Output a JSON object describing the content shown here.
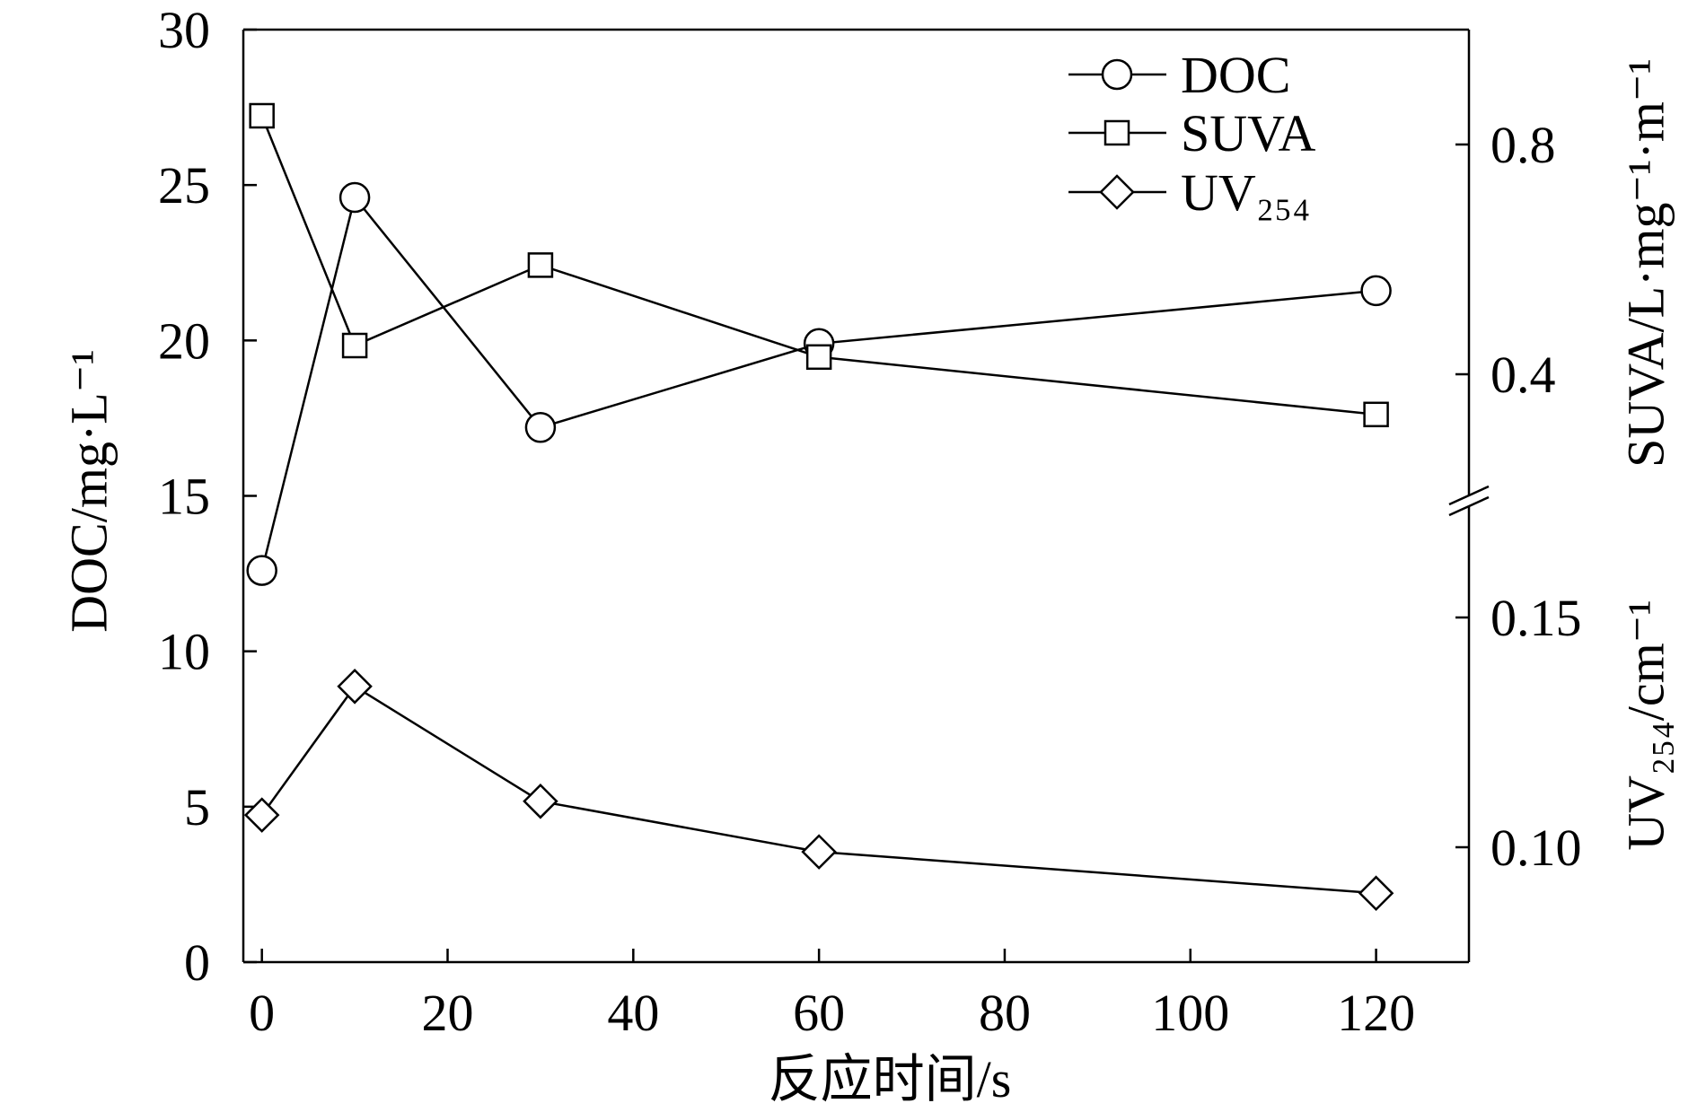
{
  "chart_data": {
    "type": "line",
    "xlabel": "反应时间/s",
    "x": [
      0,
      10,
      30,
      60,
      120
    ],
    "xlim": [
      -2,
      130
    ],
    "xticks": [
      0,
      20,
      40,
      60,
      80,
      100,
      120
    ],
    "grid": false,
    "legend_position": "top-right",
    "right_axis_break": true,
    "y_axes": [
      {
        "side": "left",
        "label": "DOC/mg·L⁻¹",
        "ylim": [
          0,
          30
        ],
        "ticks": [
          0,
          5,
          10,
          15,
          20,
          25,
          30
        ]
      },
      {
        "side": "right-upper",
        "label": "SUVA/L·mg⁻¹·m⁻¹",
        "ylim": [
          0.2,
          1.0
        ],
        "ticks": [
          "0.8",
          "0.4"
        ]
      },
      {
        "side": "right-lower",
        "label": "UV₂₅₄/cm⁻¹",
        "ylim": [
          0.075,
          0.175
        ],
        "ticks": [
          "0.15",
          "0.10"
        ]
      }
    ],
    "series": [
      {
        "name": "DOC",
        "marker": "open-circle",
        "color": "#000000",
        "y_axis": "left",
        "values": [
          12.6,
          24.6,
          17.2,
          19.9,
          21.6
        ]
      },
      {
        "name": "SUVA",
        "marker": "open-square",
        "color": "#000000",
        "y_axis": "right-upper",
        "values": [
          0.85,
          0.45,
          0.59,
          0.43,
          0.33
        ]
      },
      {
        "name": "UV₂₅₄",
        "marker": "open-diamond",
        "color": "#000000",
        "y_axis": "right-lower",
        "values": [
          0.107,
          0.135,
          0.11,
          0.099,
          0.09
        ]
      }
    ]
  }
}
